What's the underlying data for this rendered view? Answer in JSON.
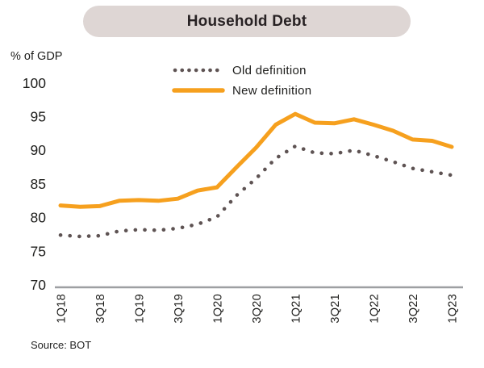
{
  "title": "Household Debt",
  "y_axis_unit": "% of GDP",
  "source": "Source: BOT",
  "legend": {
    "old": "Old definition",
    "new": "New definition"
  },
  "colors": {
    "accent_orange": "#F6A01E",
    "dot_gray": "#5E5353",
    "pill_background": "#DED6D4",
    "axis_line": "#9D9FA2",
    "text": "#1D1D1B"
  },
  "chart_data": {
    "type": "line",
    "title": "Household Debt",
    "xlabel": "",
    "ylabel": "% of GDP",
    "ylim": [
      70,
      100
    ],
    "y_ticks": [
      70,
      75,
      80,
      85,
      90,
      95,
      100
    ],
    "grid": false,
    "legend_position": "top-center",
    "x": [
      "1Q18",
      "2Q18",
      "3Q18",
      "4Q18",
      "1Q19",
      "2Q19",
      "3Q19",
      "4Q19",
      "1Q20",
      "2Q20",
      "3Q20",
      "4Q20",
      "1Q21",
      "2Q21",
      "3Q21",
      "4Q21",
      "1Q22",
      "2Q22",
      "3Q22",
      "4Q22",
      "1Q23"
    ],
    "x_tick_labels_shown": [
      "1Q18",
      "3Q18",
      "1Q19",
      "3Q19",
      "1Q20",
      "3Q20",
      "1Q21",
      "3Q21",
      "1Q22",
      "3Q22",
      "1Q23"
    ],
    "series": [
      {
        "name": "Old definition",
        "style": "dotted",
        "color": "#5E5353",
        "values": [
          77.4,
          77.2,
          77.3,
          78.0,
          78.2,
          78.1,
          78.4,
          79.0,
          80.1,
          83.3,
          85.8,
          88.8,
          90.6,
          89.6,
          89.5,
          90.0,
          89.2,
          88.3,
          87.3,
          86.8,
          86.3
        ]
      },
      {
        "name": "New definition",
        "style": "solid",
        "color": "#F6A01E",
        "values": [
          81.8,
          81.6,
          81.7,
          82.5,
          82.6,
          82.5,
          82.8,
          84.0,
          84.5,
          87.5,
          90.4,
          93.8,
          95.4,
          94.1,
          94.0,
          94.6,
          93.8,
          92.9,
          91.6,
          91.4,
          90.5
        ]
      }
    ],
    "source": "Source: BOT"
  }
}
